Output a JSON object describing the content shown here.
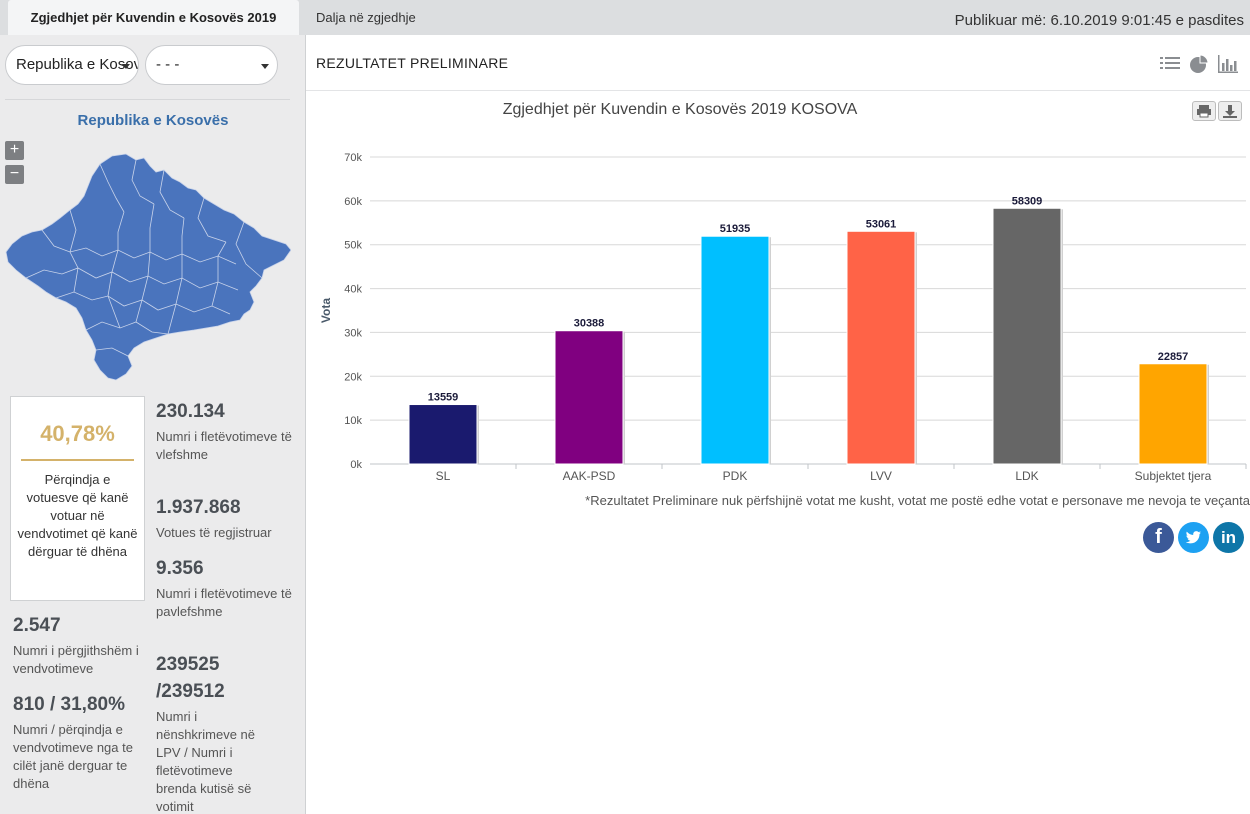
{
  "tabs": [
    {
      "label": "Zgjedhjet për Kuvendin e Kosovës 2019",
      "active": true
    },
    {
      "label": "Dalja në zgjedhje",
      "active": false
    }
  ],
  "published": "Publikuar më: 6.10.2019 9:01:45 e pasdites",
  "sidebar": {
    "region_select": "Republika e Kosovës",
    "municipality_select": "- - -",
    "region_title": "Republika e Kosovës",
    "zoom_in": "+",
    "zoom_out": "−",
    "map_color": "#4a74bd",
    "turnout": {
      "value": "40,78%",
      "label": "Përqindja e votuesve që kanë votuar në vendvotimet që kanë dërguar të dhëna"
    },
    "stats": {
      "valid_ballots": {
        "value": "230.134",
        "label": "Numri i fletëvotimeve të vlefshme"
      },
      "registered": {
        "value": "1.937.868",
        "label": "Votues të regjistruar"
      },
      "invalid_ballots": {
        "value": "9.356",
        "label": "Numri i fletëvotimeve të pavlefshme"
      },
      "total_stations": {
        "value": "2.547",
        "label": "Numri i përgjithshëm i vendvotimeve"
      },
      "signatures": {
        "value": "239525 /239512",
        "label": "Numri i nënshkrimeve në LPV / Numri i fletëvotimeve brenda kutisë së votimit"
      },
      "reporting": {
        "value": "810 / 31,80%",
        "label": "Numri / përqindja e vendvotimeve nga te cilët janë derguar te dhëna"
      }
    }
  },
  "main": {
    "title": "REZULTATET PRELIMINARE",
    "icons": [
      "list-icon",
      "pie-chart-icon",
      "bar-chart-icon"
    ],
    "chart_buttons": [
      "print-icon",
      "download-icon"
    ],
    "footnote": "*Rezultatet Preliminare nuk përfshijnë votat me kusht, votat me postë edhe votat e personave me nevoja te veçanta",
    "social": [
      "facebook-icon",
      "twitter-icon",
      "linkedin-icon"
    ]
  },
  "chart_data": {
    "type": "bar",
    "title": "Zgjedhjet për Kuvendin e Kosovës 2019 KOSOVA",
    "ylabel": "Vota",
    "xlabel": "",
    "categories": [
      "SL",
      "AAK-PSD",
      "PDK",
      "LVV",
      "LDK",
      "Subjektet tjera"
    ],
    "values": [
      13559,
      30388,
      51935,
      53061,
      58309,
      22857
    ],
    "colors": [
      "#1a1a6e",
      "#800080",
      "#00bfff",
      "#ff6347",
      "#666666",
      "#ffa500"
    ],
    "ylim": [
      0,
      70000
    ],
    "yticks": [
      "0k",
      "10k",
      "20k",
      "30k",
      "40k",
      "50k",
      "60k",
      "70k"
    ],
    "grid": true,
    "data_labels": true
  }
}
